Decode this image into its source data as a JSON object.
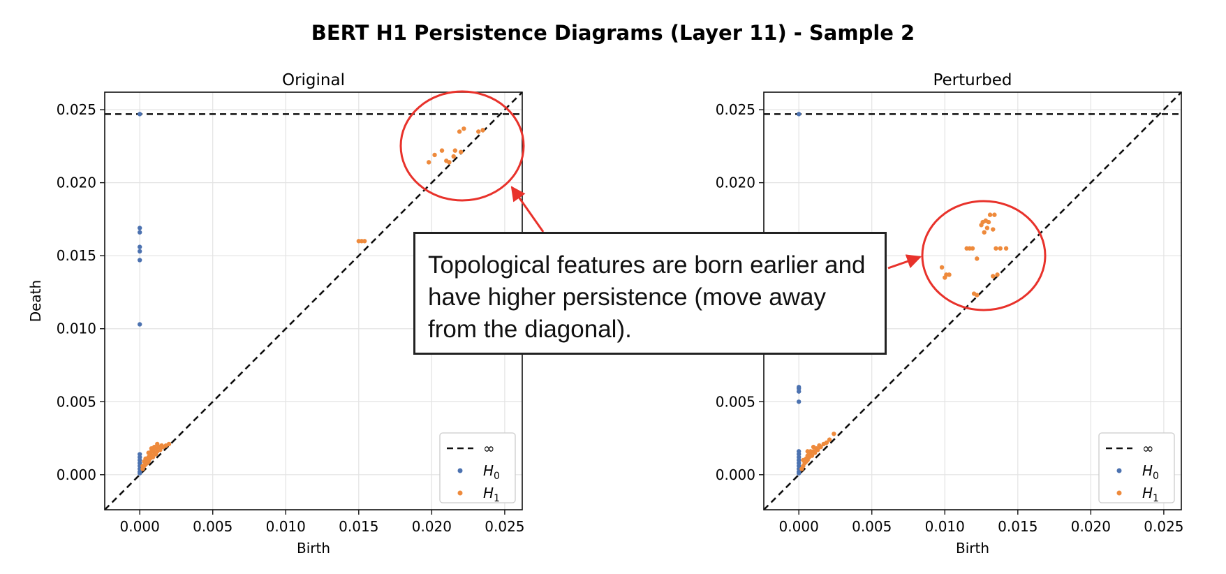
{
  "suptitle": "BERT H1 Persistence Diagrams (Layer 11) - Sample 2",
  "annotation": "Topological features are born earlier and have higher persistence (move away from the diagonal).",
  "colors": {
    "H0": "#4c72b0",
    "H1": "#ee8a3c",
    "annotation": "#e8322b"
  },
  "chart_data": [
    {
      "type": "scatter",
      "title": "Original",
      "xlabel": "Birth",
      "ylabel": "Death",
      "xlim": [
        -0.0024,
        0.0262
      ],
      "ylim": [
        -0.0024,
        0.0262
      ],
      "xticks": [
        "0.000",
        "0.005",
        "0.010",
        "0.015",
        "0.020",
        "0.025"
      ],
      "yticks": [
        "0.000",
        "0.005",
        "0.010",
        "0.015",
        "0.020",
        "0.025"
      ],
      "infinity_line": 0.0247,
      "grid": true,
      "legend": {
        "placement": "lower-right",
        "entries": [
          "∞",
          "H0",
          "H1"
        ]
      },
      "series": [
        {
          "name": "H0",
          "points": [
            [
              0,
              0.0247
            ],
            [
              0,
              0.0169
            ],
            [
              0,
              0.0166
            ],
            [
              0,
              0.0156
            ],
            [
              0,
              0.0153
            ],
            [
              0,
              0.0147
            ],
            [
              0,
              0.0103
            ],
            [
              0,
              0.0014
            ],
            [
              0,
              0.0012
            ],
            [
              0,
              0.001
            ],
            [
              0,
              0.0008
            ],
            [
              0,
              0.0006
            ],
            [
              0,
              0.0004
            ],
            [
              0,
              0.0002
            ],
            [
              0,
              0.0001
            ]
          ]
        },
        {
          "name": "H1",
          "points": [
            [
              0.0198,
              0.0214
            ],
            [
              0.0202,
              0.0219
            ],
            [
              0.0207,
              0.0222
            ],
            [
              0.021,
              0.0215
            ],
            [
              0.0212,
              0.0214
            ],
            [
              0.0215,
              0.0218
            ],
            [
              0.0216,
              0.0222
            ],
            [
              0.0219,
              0.0235
            ],
            [
              0.022,
              0.0221
            ],
            [
              0.0222,
              0.0237
            ],
            [
              0.0232,
              0.0235
            ],
            [
              0.0235,
              0.0236
            ],
            [
              0.015,
              0.016
            ],
            [
              0.0152,
              0.016
            ],
            [
              0.0154,
              0.016
            ],
            [
              0.0002,
              0.0004
            ],
            [
              0.0003,
              0.0006
            ],
            [
              0.0004,
              0.0007
            ],
            [
              0.0005,
              0.0008
            ],
            [
              0.0005,
              0.001
            ],
            [
              0.0006,
              0.0009
            ],
            [
              0.0006,
              0.0012
            ],
            [
              0.0007,
              0.0011
            ],
            [
              0.0007,
              0.0014
            ],
            [
              0.0008,
              0.0013
            ],
            [
              0.0008,
              0.0016
            ],
            [
              0.0009,
              0.0012
            ],
            [
              0.0009,
              0.0017
            ],
            [
              0.001,
              0.0015
            ],
            [
              0.001,
              0.0019
            ],
            [
              0.0011,
              0.0014
            ],
            [
              0.0011,
              0.0018
            ],
            [
              0.0012,
              0.0021
            ],
            [
              0.0012,
              0.0016
            ],
            [
              0.0013,
              0.0019
            ],
            [
              0.0014,
              0.0017
            ],
            [
              0.0015,
              0.002
            ],
            [
              0.0016,
              0.0019
            ],
            [
              0.0018,
              0.002
            ],
            [
              0.002,
              0.0021
            ],
            [
              0.0003,
              0.0009
            ],
            [
              0.0004,
              0.0011
            ],
            [
              0.0002,
              0.0006
            ],
            [
              0.0006,
              0.0015
            ],
            [
              0.0008,
              0.0018
            ]
          ]
        }
      ]
    },
    {
      "type": "scatter",
      "title": "Perturbed",
      "xlabel": "Birth",
      "ylabel": "",
      "xlim": [
        -0.0024,
        0.0262
      ],
      "ylim": [
        -0.0024,
        0.0262
      ],
      "xticks": [
        "0.000",
        "0.005",
        "0.010",
        "0.015",
        "0.020",
        "0.025"
      ],
      "yticks": [
        "0.000",
        "0.005",
        "0.010",
        "0.015",
        "0.020",
        "0.025"
      ],
      "infinity_line": 0.0247,
      "grid": true,
      "legend": {
        "placement": "lower-right",
        "entries": [
          "∞",
          "H0",
          "H1"
        ]
      },
      "series": [
        {
          "name": "H0",
          "points": [
            [
              0,
              0.0247
            ],
            [
              0,
              0.006
            ],
            [
              0,
              0.0059
            ],
            [
              0,
              0.0057
            ],
            [
              0,
              0.005
            ],
            [
              0,
              0.0016
            ],
            [
              0,
              0.0014
            ],
            [
              0,
              0.0012
            ],
            [
              0,
              0.001
            ],
            [
              0,
              0.0008
            ],
            [
              0,
              0.0006
            ],
            [
              0,
              0.0004
            ],
            [
              0,
              0.0002
            ],
            [
              0,
              0.0001
            ]
          ]
        },
        {
          "name": "H1",
          "points": [
            [
              0.0098,
              0.0142
            ],
            [
              0.01,
              0.0135
            ],
            [
              0.0101,
              0.0137
            ],
            [
              0.0103,
              0.0137
            ],
            [
              0.0115,
              0.0155
            ],
            [
              0.0117,
              0.0155
            ],
            [
              0.0119,
              0.0155
            ],
            [
              0.0122,
              0.0148
            ],
            [
              0.012,
              0.0124
            ],
            [
              0.0122,
              0.0123
            ],
            [
              0.0125,
              0.0171
            ],
            [
              0.0126,
              0.0173
            ],
            [
              0.0127,
              0.0166
            ],
            [
              0.0128,
              0.0174
            ],
            [
              0.0129,
              0.0169
            ],
            [
              0.013,
              0.0173
            ],
            [
              0.0131,
              0.0178
            ],
            [
              0.0133,
              0.0168
            ],
            [
              0.0134,
              0.0178
            ],
            [
              0.0135,
              0.0155
            ],
            [
              0.0138,
              0.0155
            ],
            [
              0.0142,
              0.0155
            ],
            [
              0.0133,
              0.0136
            ],
            [
              0.0136,
              0.0137
            ],
            [
              0.0002,
              0.0004
            ],
            [
              0.0003,
              0.0006
            ],
            [
              0.0004,
              0.0008
            ],
            [
              0.0005,
              0.0009
            ],
            [
              0.0005,
              0.0011
            ],
            [
              0.0006,
              0.001
            ],
            [
              0.0006,
              0.0013
            ],
            [
              0.0007,
              0.0012
            ],
            [
              0.0008,
              0.0014
            ],
            [
              0.0008,
              0.0016
            ],
            [
              0.0009,
              0.0013
            ],
            [
              0.001,
              0.0016
            ],
            [
              0.001,
              0.0019
            ],
            [
              0.0011,
              0.0015
            ],
            [
              0.0012,
              0.0018
            ],
            [
              0.0013,
              0.0017
            ],
            [
              0.0014,
              0.002
            ],
            [
              0.0015,
              0.0019
            ],
            [
              0.0017,
              0.0021
            ],
            [
              0.0019,
              0.0022
            ],
            [
              0.0021,
              0.0024
            ],
            [
              0.0024,
              0.0028
            ],
            [
              0.0003,
              0.001
            ],
            [
              0.0006,
              0.0016
            ]
          ]
        }
      ]
    }
  ]
}
